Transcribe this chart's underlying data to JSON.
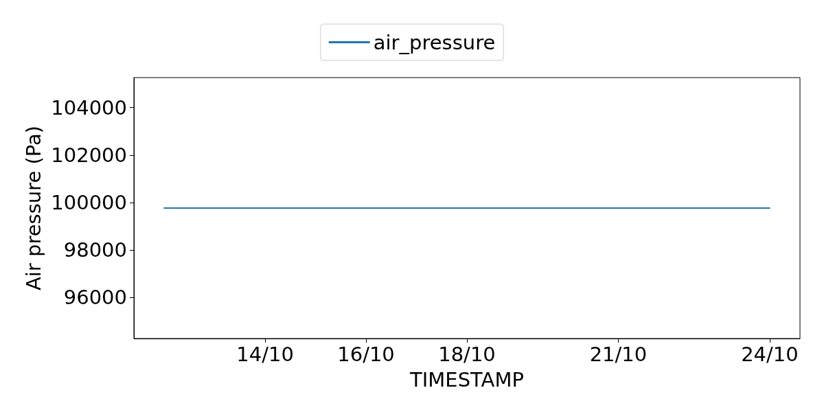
{
  "chart_data": {
    "type": "line",
    "xlabel": "TIMESTAMP",
    "ylabel": "Air pressure (Pa)",
    "x": [
      "--10-12",
      "--10-13",
      "--10-14",
      "--10-15",
      "--10-16",
      "--10-17",
      "--10-18",
      "--10-19",
      "--10-20",
      "--10-21",
      "--10-22",
      "--10-23",
      "--10-24"
    ],
    "series": [
      {
        "name": "air_pressure",
        "color": "#1f77b4",
        "values": [
          99770,
          99770,
          99770,
          99770,
          99770,
          99770,
          99770,
          99770,
          99770,
          99770,
          99770,
          99770,
          99770
        ]
      }
    ],
    "xlim": [
      "--10-11T09:36",
      "--10-24T14:24"
    ],
    "xticks": [
      {
        "value": "--10-14",
        "label": "14/10"
      },
      {
        "value": "--10-16",
        "label": "16/10"
      },
      {
        "value": "--10-18",
        "label": "18/10"
      },
      {
        "value": "--10-21",
        "label": "21/10"
      },
      {
        "value": "--10-24",
        "label": "24/10"
      }
    ],
    "ylim": [
      94280,
      105260
    ],
    "yticks": [
      96000,
      98000,
      100000,
      102000,
      104000
    ],
    "grid": false,
    "legend": "top",
    "marker": "none",
    "line_style": "solid"
  }
}
